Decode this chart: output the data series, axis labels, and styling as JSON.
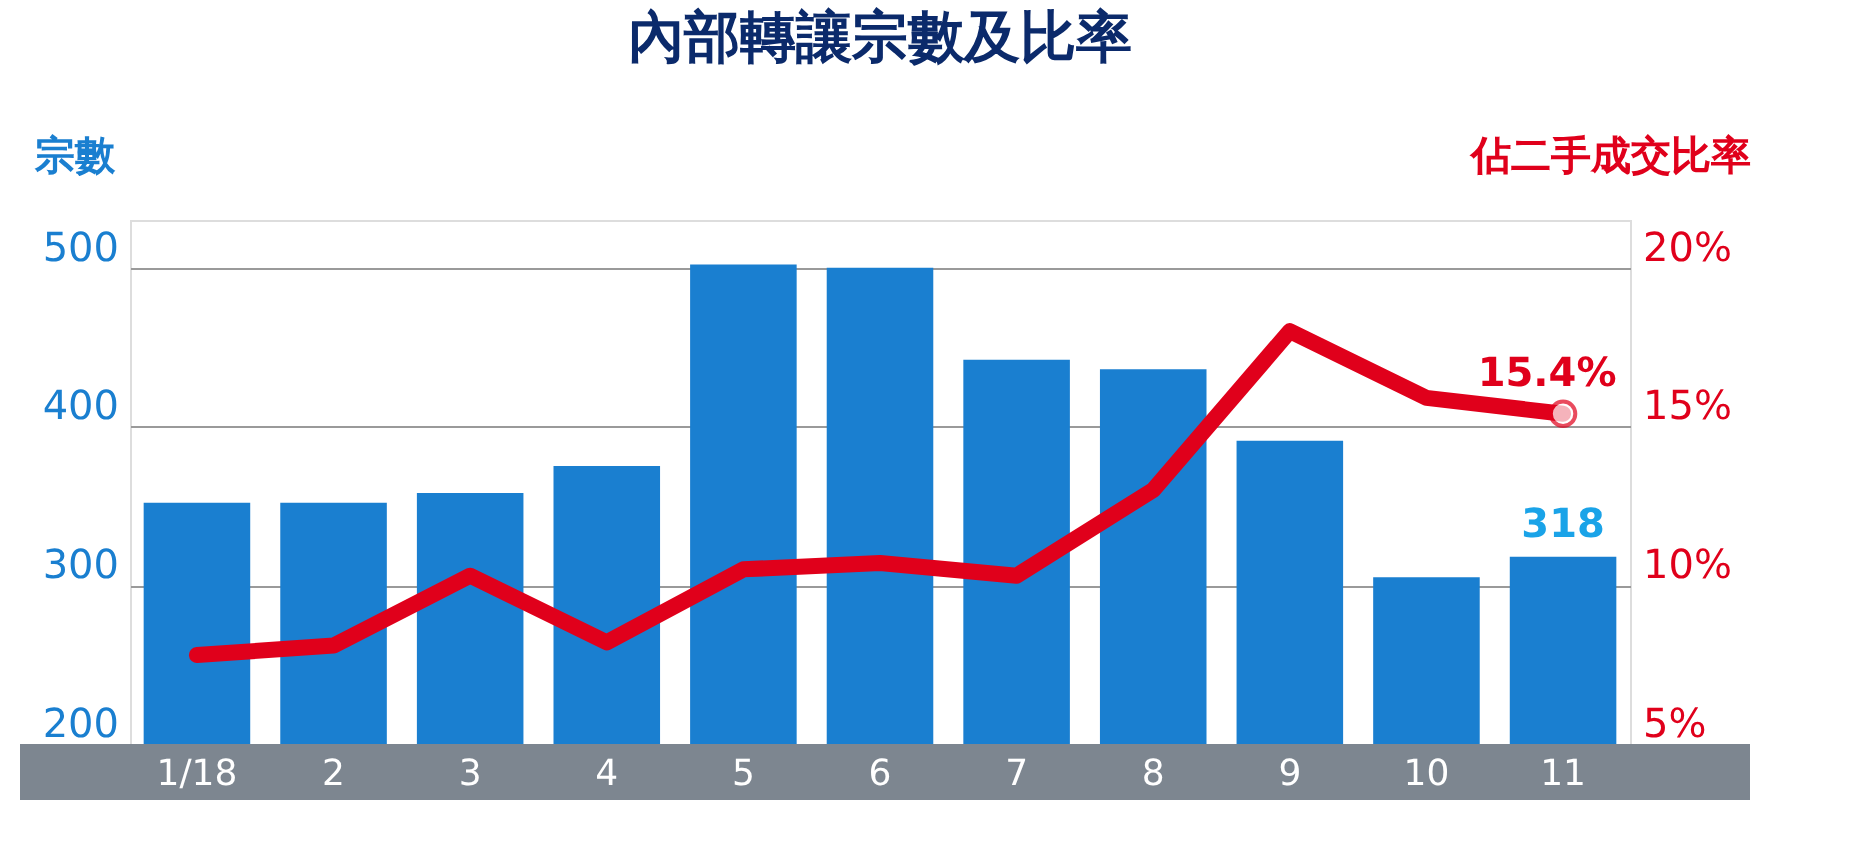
{
  "chart_data": {
    "type": "bar",
    "title": "內部轉讓宗數及比率",
    "ylabel": "宗數",
    "y2label": "佔二手成交比率",
    "categories": [
      "1/18",
      "2",
      "3",
      "4",
      "5",
      "6",
      "7",
      "8",
      "9",
      "10",
      "11"
    ],
    "series": [
      {
        "name": null,
        "color": "#1a7fd0",
        "values": [
          352,
          352,
          358,
          375,
          502,
          500,
          442,
          436,
          391,
          305,
          318
        ],
        "value_labels": [
          null,
          null,
          null,
          null,
          null,
          null,
          null,
          null,
          null,
          null,
          "318"
        ]
      },
      {
        "name": null,
        "type": "line",
        "axis": "y2",
        "color": "#e0001b",
        "values": [
          7.8,
          8.1,
          10.3,
          8.2,
          10.5,
          10.7,
          10.3,
          13.0,
          18.0,
          15.9,
          15.4
        ],
        "value_labels": [
          null,
          null,
          null,
          null,
          null,
          null,
          null,
          null,
          null,
          null,
          "15.4%"
        ]
      }
    ],
    "ylim": [
      200,
      530
    ],
    "yticks": [
      200,
      300,
      400,
      500
    ],
    "y2lim": [
      5,
      21.5
    ],
    "y2ticks": [
      {
        "value": 5,
        "label": "5%"
      },
      {
        "value": 10,
        "label": "10%"
      },
      {
        "value": 15,
        "label": "15%"
      },
      {
        "value": 20,
        "label": "20%"
      }
    ],
    "grid": "y",
    "line_style": "solid"
  }
}
